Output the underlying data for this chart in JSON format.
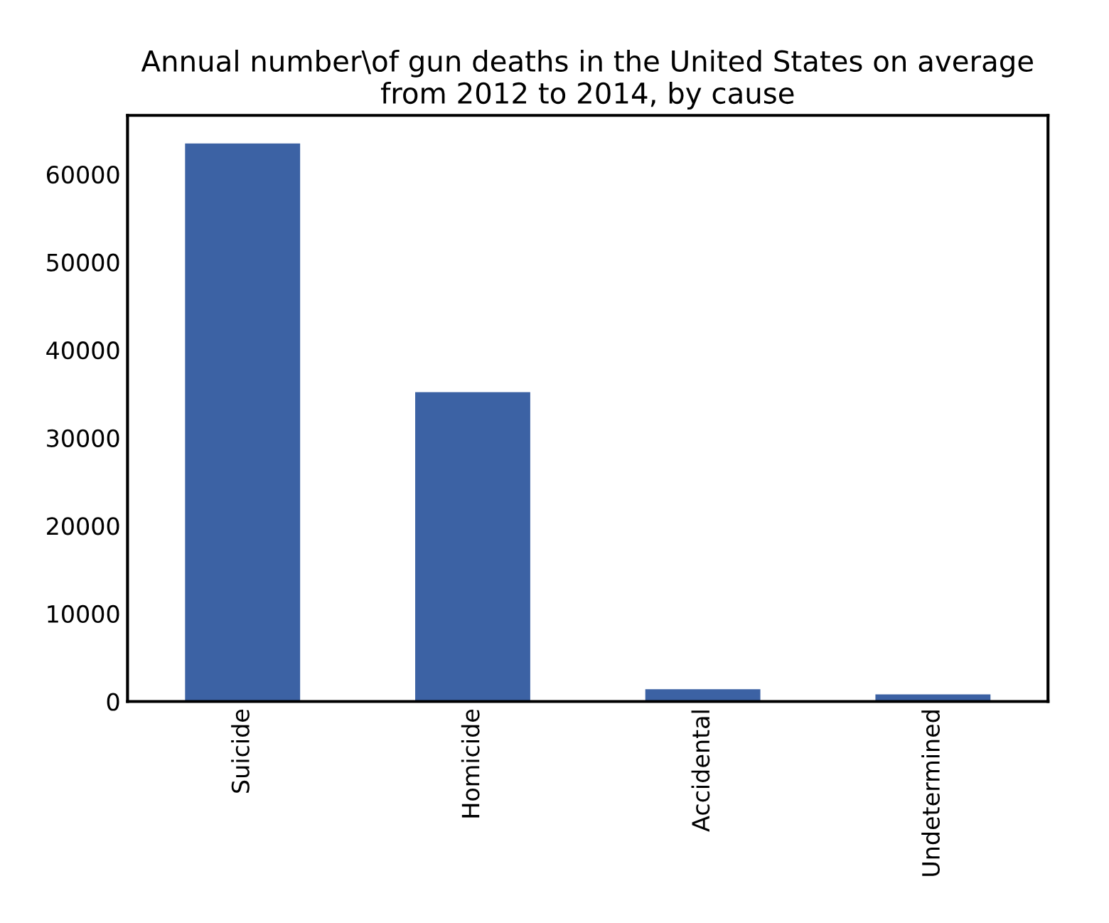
{
  "chart_data": {
    "type": "bar",
    "title": "Annual number\\of gun deaths in the United States on average\nfrom 2012 to 2014, by cause",
    "categories": [
      "Suicide",
      "Homicide",
      "Accidental",
      "Undetermined"
    ],
    "values": [
      63500,
      35200,
      1400,
      800
    ],
    "color": "#3c62a4",
    "ylim": [
      0,
      66700
    ],
    "yticks": [
      0,
      10000,
      20000,
      30000,
      40000,
      50000,
      60000
    ],
    "grid": false
  }
}
